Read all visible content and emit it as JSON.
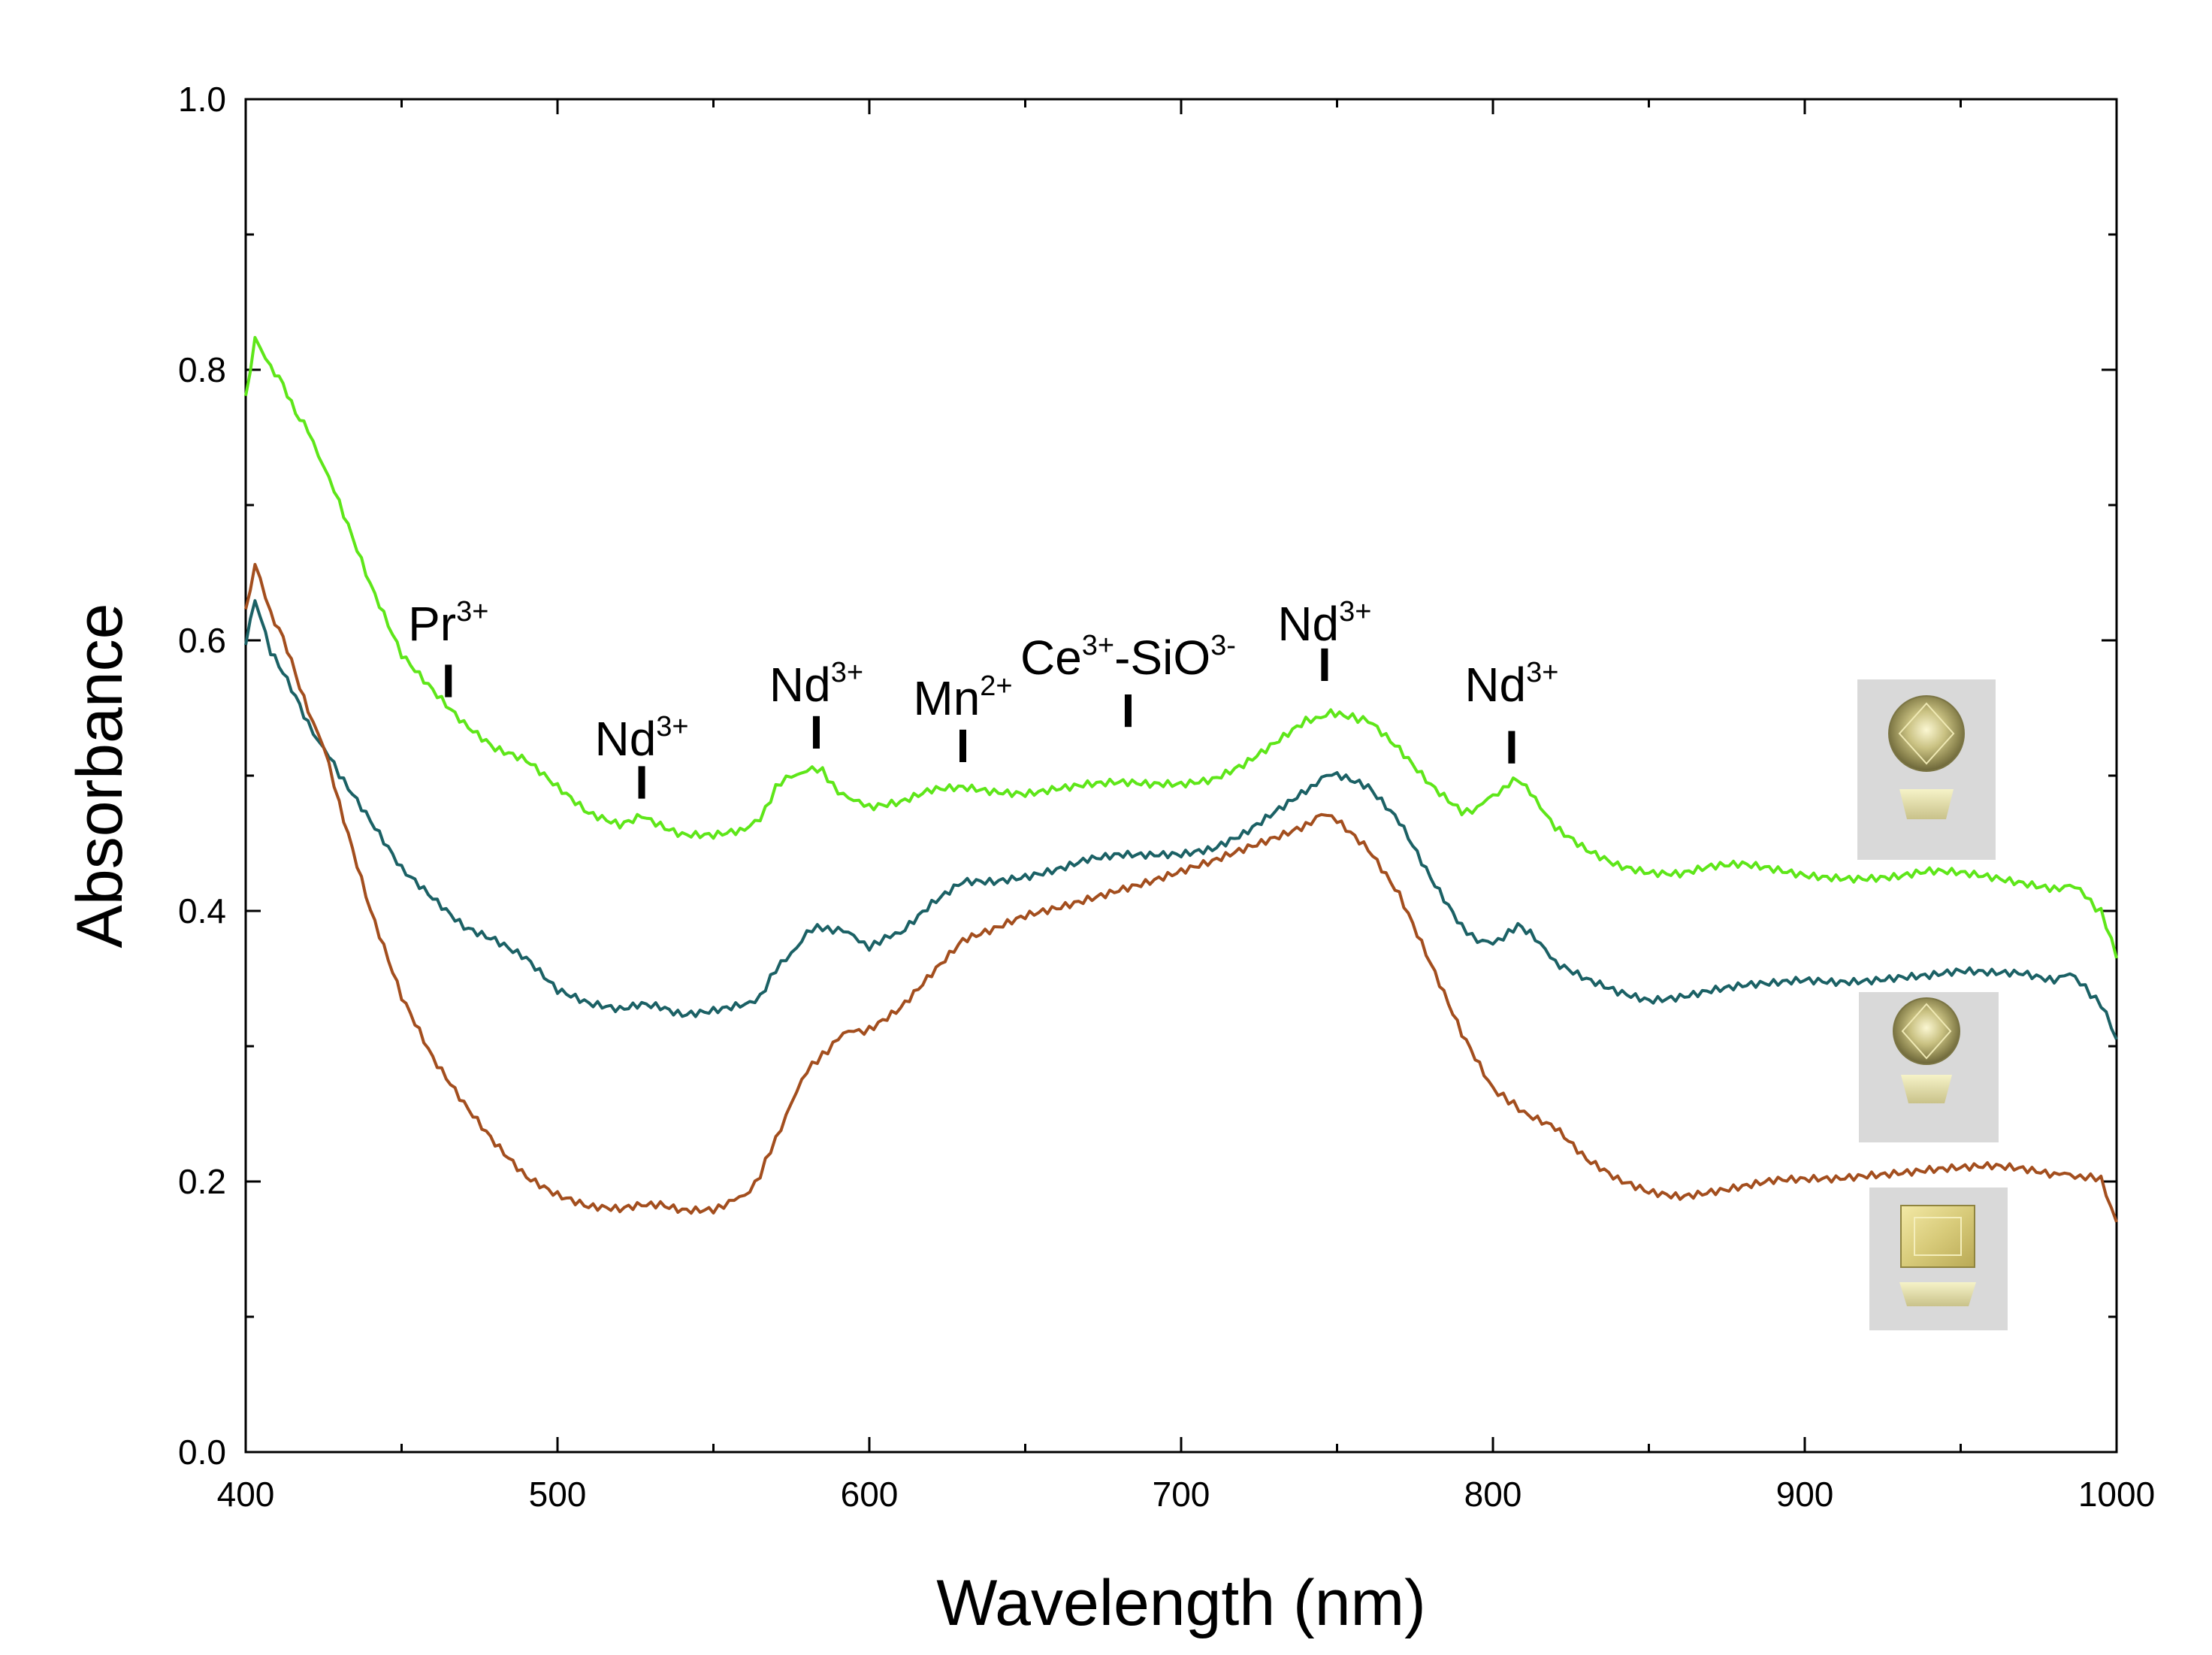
{
  "chart_data": {
    "type": "line",
    "title": "",
    "xlabel": "Wavelength (nm)",
    "ylabel": "Absorbance",
    "xlim": [
      400,
      1000
    ],
    "ylim": [
      0.0,
      1.0
    ],
    "x_ticks": [
      400,
      500,
      600,
      700,
      800,
      900,
      1000
    ],
    "x_tick_labels": [
      "400",
      "500",
      "600",
      "700",
      "800",
      "900",
      "1000"
    ],
    "y_ticks": [
      0.0,
      0.2,
      0.4,
      0.6,
      0.8,
      1.0
    ],
    "y_tick_labels": [
      "0.0",
      "0.2",
      "0.4",
      "0.6",
      "0.8",
      "1.0"
    ],
    "grid": false,
    "legend": "none",
    "series": [
      {
        "name": "green sample (round)",
        "color": "#5ee619",
        "x": [
          400,
          403,
          408,
          412,
          416,
          420,
          425,
          430,
          440,
          450,
          460,
          470,
          480,
          490,
          500,
          510,
          520,
          527,
          533,
          540,
          550,
          560,
          565,
          570,
          575,
          580,
          585,
          590,
          595,
          600,
          610,
          620,
          630,
          640,
          650,
          660,
          670,
          680,
          690,
          700,
          710,
          720,
          730,
          740,
          748,
          755,
          760,
          770,
          780,
          790,
          795,
          800,
          805,
          808,
          812,
          820,
          830,
          840,
          850,
          860,
          870,
          880,
          890,
          900,
          910,
          920,
          930,
          940,
          950,
          960,
          970,
          980,
          985,
          990,
          995,
          1000
        ],
        "values": [
          0.78,
          0.825,
          0.8,
          0.79,
          0.77,
          0.755,
          0.73,
          0.7,
          0.64,
          0.59,
          0.565,
          0.54,
          0.52,
          0.51,
          0.49,
          0.472,
          0.465,
          0.472,
          0.465,
          0.457,
          0.455,
          0.458,
          0.47,
          0.49,
          0.5,
          0.505,
          0.502,
          0.49,
          0.48,
          0.478,
          0.48,
          0.488,
          0.49,
          0.488,
          0.488,
          0.492,
          0.494,
          0.494,
          0.492,
          0.493,
          0.498,
          0.51,
          0.525,
          0.54,
          0.548,
          0.545,
          0.54,
          0.52,
          0.495,
          0.475,
          0.475,
          0.485,
          0.495,
          0.498,
          0.49,
          0.46,
          0.445,
          0.435,
          0.43,
          0.428,
          0.432,
          0.433,
          0.43,
          0.427,
          0.426,
          0.425,
          0.425,
          0.428,
          0.427,
          0.425,
          0.422,
          0.418,
          0.418,
          0.412,
          0.4,
          0.365
        ]
      },
      {
        "name": "teal sample (round)",
        "color": "#1b6165",
        "x": [
          400,
          403,
          408,
          412,
          416,
          420,
          425,
          430,
          440,
          450,
          460,
          470,
          480,
          490,
          500,
          510,
          520,
          527,
          533,
          540,
          550,
          560,
          565,
          570,
          575,
          580,
          585,
          590,
          595,
          600,
          605,
          610,
          620,
          630,
          640,
          650,
          660,
          670,
          680,
          690,
          700,
          710,
          720,
          730,
          740,
          745,
          750,
          760,
          770,
          780,
          790,
          795,
          800,
          805,
          808,
          812,
          820,
          830,
          840,
          850,
          860,
          870,
          880,
          890,
          900,
          910,
          920,
          930,
          940,
          950,
          960,
          970,
          980,
          985,
          990,
          995,
          1000
        ],
        "values": [
          0.6,
          0.63,
          0.59,
          0.575,
          0.56,
          0.54,
          0.52,
          0.5,
          0.465,
          0.43,
          0.41,
          0.39,
          0.38,
          0.365,
          0.34,
          0.33,
          0.327,
          0.333,
          0.33,
          0.325,
          0.327,
          0.33,
          0.338,
          0.355,
          0.37,
          0.383,
          0.388,
          0.387,
          0.38,
          0.375,
          0.378,
          0.385,
          0.405,
          0.42,
          0.42,
          0.425,
          0.432,
          0.44,
          0.442,
          0.44,
          0.44,
          0.445,
          0.458,
          0.475,
          0.49,
          0.498,
          0.5,
          0.49,
          0.465,
          0.425,
          0.39,
          0.376,
          0.378,
          0.383,
          0.388,
          0.385,
          0.36,
          0.348,
          0.34,
          0.335,
          0.338,
          0.342,
          0.344,
          0.345,
          0.348,
          0.348,
          0.35,
          0.352,
          0.352,
          0.354,
          0.353,
          0.354,
          0.35,
          0.352,
          0.345,
          0.33,
          0.305
        ]
      },
      {
        "name": "brown sample (emerald cut)",
        "color": "#a34e1e",
        "x": [
          400,
          403,
          408,
          412,
          416,
          420,
          425,
          430,
          440,
          450,
          460,
          470,
          480,
          490,
          500,
          510,
          520,
          527,
          533,
          540,
          550,
          555,
          560,
          565,
          570,
          575,
          580,
          585,
          590,
          595,
          600,
          610,
          620,
          630,
          640,
          650,
          660,
          670,
          680,
          690,
          700,
          710,
          720,
          730,
          740,
          745,
          750,
          760,
          770,
          780,
          790,
          800,
          805,
          810,
          820,
          830,
          840,
          850,
          860,
          870,
          880,
          890,
          900,
          910,
          920,
          930,
          940,
          950,
          960,
          970,
          980,
          985,
          990,
          995,
          1000
        ],
        "values": [
          0.62,
          0.655,
          0.62,
          0.6,
          0.575,
          0.55,
          0.52,
          0.48,
          0.4,
          0.335,
          0.29,
          0.258,
          0.23,
          0.205,
          0.19,
          0.18,
          0.178,
          0.183,
          0.182,
          0.18,
          0.181,
          0.183,
          0.19,
          0.205,
          0.23,
          0.26,
          0.28,
          0.295,
          0.305,
          0.312,
          0.313,
          0.33,
          0.355,
          0.378,
          0.385,
          0.395,
          0.402,
          0.41,
          0.417,
          0.422,
          0.428,
          0.435,
          0.445,
          0.455,
          0.465,
          0.47,
          0.468,
          0.445,
          0.41,
          0.36,
          0.31,
          0.27,
          0.258,
          0.252,
          0.24,
          0.215,
          0.2,
          0.192,
          0.19,
          0.194,
          0.197,
          0.2,
          0.2,
          0.201,
          0.205,
          0.208,
          0.21,
          0.21,
          0.21,
          0.208,
          0.205,
          0.204,
          0.205,
          0.2,
          0.17
        ]
      }
    ],
    "annotations": [
      {
        "base": "Pr",
        "sup": "3+",
        "x": 465,
        "y": 0.6
      },
      {
        "base": "Nd",
        "sup": "3+",
        "x": 527,
        "y": 0.515
      },
      {
        "base": "Nd",
        "sup": "3+",
        "x": 583,
        "y": 0.555
      },
      {
        "base": "Mn",
        "sup": "2+",
        "x": 630,
        "y": 0.545
      },
      {
        "base": "Ce",
        "sup": "3+",
        "base2": "-SiO",
        "sup2": "3-",
        "x": 683,
        "y": 0.575
      },
      {
        "base": "Nd",
        "sup": "3+",
        "x": 746,
        "y": 0.6
      },
      {
        "base": "Nd",
        "sup": "3+",
        "x": 806,
        "y": 0.555
      }
    ],
    "markers": [
      {
        "x": 465,
        "y_bottom": 0.558,
        "y_top": 0.582
      },
      {
        "x": 527,
        "y_bottom": 0.483,
        "y_top": 0.507
      },
      {
        "x": 583,
        "y_bottom": 0.52,
        "y_top": 0.544
      },
      {
        "x": 630,
        "y_bottom": 0.51,
        "y_top": 0.534
      },
      {
        "x": 683,
        "y_bottom": 0.536,
        "y_top": 0.56
      },
      {
        "x": 746,
        "y_bottom": 0.57,
        "y_top": 0.594
      },
      {
        "x": 806,
        "y_bottom": 0.509,
        "y_top": 0.533
      }
    ]
  },
  "gem_images": [
    {
      "name": "green-round-gem",
      "shape": "round"
    },
    {
      "name": "teal-round-gem",
      "shape": "round"
    },
    {
      "name": "brown-square-gem",
      "shape": "square"
    }
  ]
}
